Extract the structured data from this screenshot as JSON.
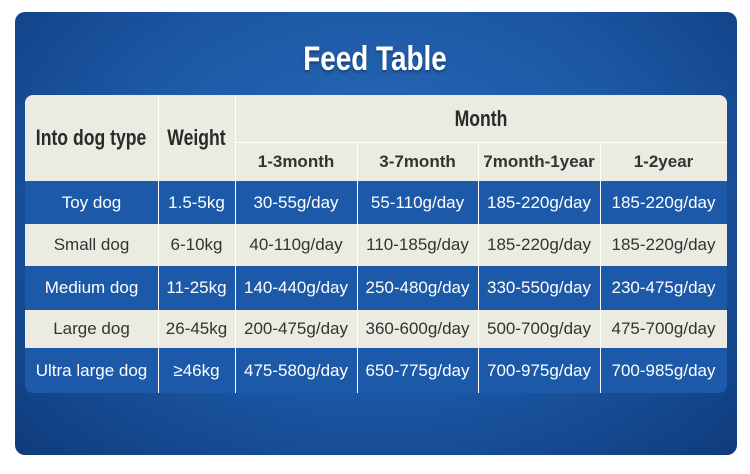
{
  "header": {
    "title": "Feed Table"
  },
  "table": {
    "columns": [
      "Into dog type",
      "Weight"
    ],
    "group": "Month",
    "subcolumns": [
      "1-3month",
      "3-7month",
      "7month-1year",
      "1-2year"
    ],
    "rows": [
      [
        "Toy dog",
        "1.5-5kg",
        "30-55g/day",
        "55-110g/day",
        "185-220g/day",
        "185-220g/day"
      ],
      [
        "Small dog",
        "6-10kg",
        "40-110g/day",
        "110-185g/day",
        "185-220g/day",
        "185-220g/day"
      ],
      [
        "Medium dog",
        "11-25kg",
        "140-440g/day",
        "250-480g/day",
        "330-550g/day",
        "230-475g/day"
      ],
      [
        "Large dog",
        "26-45kg",
        "200-475g/day",
        "360-600g/day",
        "500-700g/day",
        "475-700g/day"
      ],
      [
        "Ultra large dog",
        "≥46kg",
        "475-580g/day",
        "650-775g/day",
        "700-975g/day",
        "700-985g/day"
      ]
    ]
  }
}
